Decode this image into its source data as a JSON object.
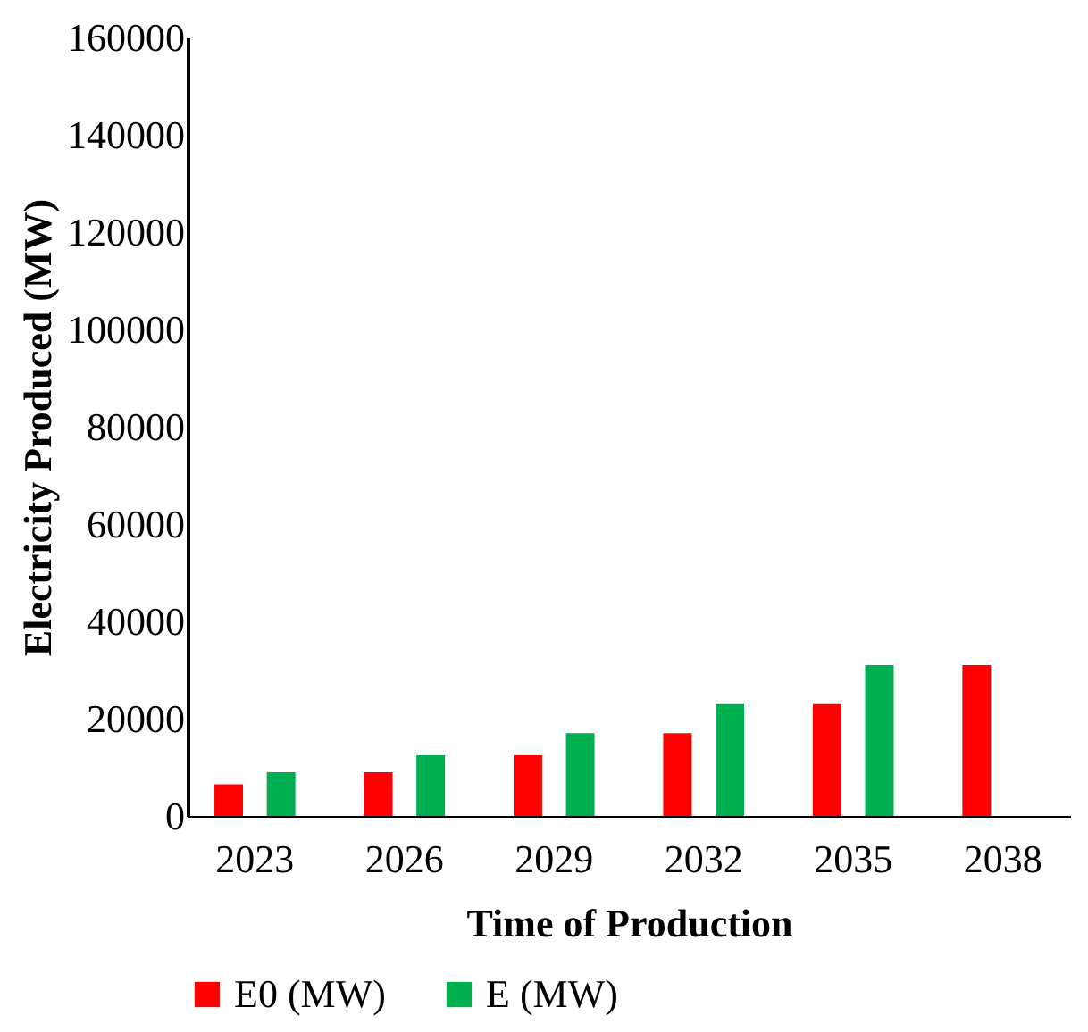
{
  "chart_data": {
    "type": "bar",
    "xlabel": "Time of Production",
    "ylabel": "Electricity  Produced (MW)",
    "categories": [
      "2023",
      "2026",
      "2029",
      "2032",
      "2035",
      "2038"
    ],
    "series": [
      {
        "name": "E0 (MW)",
        "color": "#ff0000",
        "values": [
          6500,
          9000,
          12500,
          17000,
          23000,
          31000
        ]
      },
      {
        "name": "E (MW)",
        "color": "#00b050",
        "values": [
          9000,
          12500,
          17000,
          23000,
          31000,
          null
        ]
      }
    ],
    "ylim": [
      0,
      160000
    ],
    "yticks": [
      0,
      20000,
      40000,
      60000,
      80000,
      100000,
      120000,
      140000,
      160000
    ],
    "grid": false,
    "legend": "bottom"
  }
}
